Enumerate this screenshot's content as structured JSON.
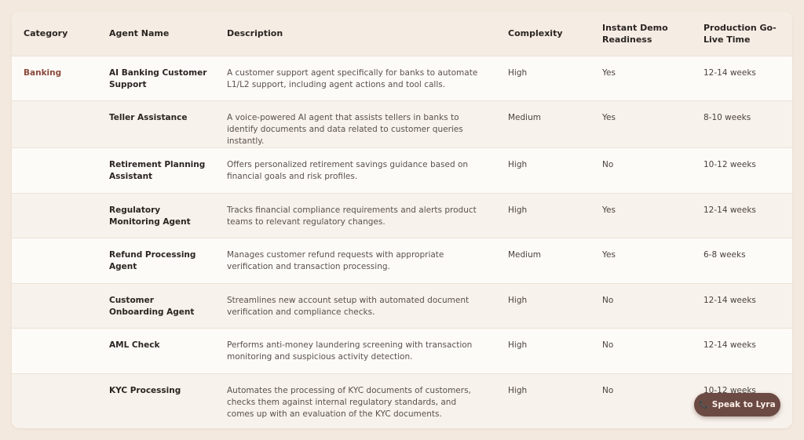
{
  "table": {
    "headers": {
      "category": "Category",
      "agent_name": "Agent Name",
      "description": "Description",
      "complexity": "Complexity",
      "demo": "Instant Demo Readiness",
      "golive": "Production Go-Live Time"
    },
    "rows": [
      {
        "category": "Banking",
        "name": "AI Banking Customer Support",
        "description": "A customer support agent specifically for banks to automate L1/L2 support, including agent actions and tool calls.",
        "complexity": "High",
        "demo": "Yes",
        "golive": "12-14 weeks"
      },
      {
        "category": "",
        "name": "Teller Assistance",
        "description": "A voice-powered AI agent that assists tellers in banks to identify documents and data related to customer queries instantly.",
        "complexity": "Medium",
        "demo": "Yes",
        "golive": "8-10 weeks"
      },
      {
        "category": "",
        "name": "Retirement Planning Assistant",
        "description": "Offers personalized retirement savings guidance based on financial goals and risk profiles.",
        "complexity": "High",
        "demo": "No",
        "golive": "10-12 weeks"
      },
      {
        "category": "",
        "name": "Regulatory Monitoring Agent",
        "description": "Tracks financial compliance requirements and alerts product teams to relevant regulatory changes.",
        "complexity": "High",
        "demo": "Yes",
        "golive": "12-14 weeks"
      },
      {
        "category": "",
        "name": "Refund Processing Agent",
        "description": "Manages customer refund requests with appropriate verification and transaction processing.",
        "complexity": "Medium",
        "demo": "Yes",
        "golive": "6-8 weeks"
      },
      {
        "category": "",
        "name": "Customer Onboarding Agent",
        "description": "Streamlines new account setup with automated document verification and compliance checks.",
        "complexity": "High",
        "demo": "No",
        "golive": "12-14 weeks"
      },
      {
        "category": "",
        "name": "AML Check",
        "description": "Performs anti-money laundering screening with transaction monitoring and suspicious activity detection.",
        "complexity": "High",
        "demo": "No",
        "golive": "12-14 weeks"
      },
      {
        "category": "",
        "name": "KYC Processing",
        "description": "Automates the processing of KYC documents of customers, checks them against internal regulatory standards, and comes up with an evaluation of the KYC documents.",
        "complexity": "High",
        "demo": "No",
        "golive": "10-12 weeks"
      }
    ]
  },
  "speak_button": {
    "label": "Speak to Lyra",
    "icon": "phone-icon"
  },
  "colors": {
    "background": "#f3e9df",
    "header_bg": "#f5ede4",
    "category_accent": "#8a4a3c",
    "button_bg": "#6b4a43"
  }
}
